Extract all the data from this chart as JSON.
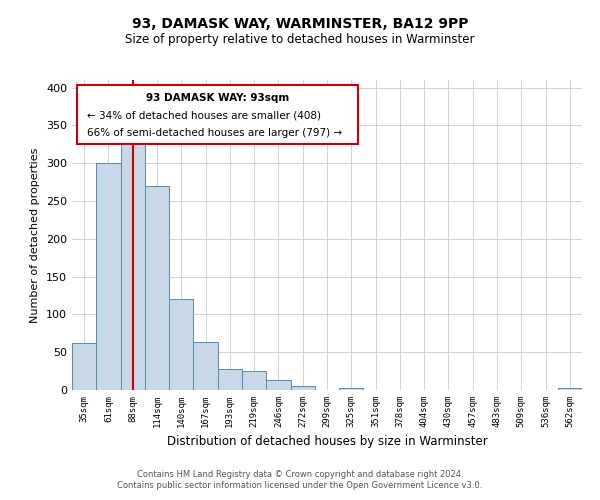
{
  "title": "93, DAMASK WAY, WARMINSTER, BA12 9PP",
  "subtitle": "Size of property relative to detached houses in Warminster",
  "xlabel": "Distribution of detached houses by size in Warminster",
  "ylabel": "Number of detached properties",
  "bin_labels": [
    "35sqm",
    "61sqm",
    "88sqm",
    "114sqm",
    "140sqm",
    "167sqm",
    "193sqm",
    "219sqm",
    "246sqm",
    "272sqm",
    "299sqm",
    "325sqm",
    "351sqm",
    "378sqm",
    "404sqm",
    "430sqm",
    "457sqm",
    "483sqm",
    "509sqm",
    "536sqm",
    "562sqm"
  ],
  "bar_values": [
    62,
    300,
    330,
    270,
    120,
    63,
    28,
    25,
    13,
    5,
    0,
    3,
    0,
    0,
    0,
    0,
    0,
    0,
    0,
    0,
    3
  ],
  "bar_color": "#c8d8e8",
  "bar_edge_color": "#5a8aaa",
  "vline_x_index": 2,
  "vline_color": "#cc0000",
  "annotation_title": "93 DAMASK WAY: 93sqm",
  "annotation_line1": "← 34% of detached houses are smaller (408)",
  "annotation_line2": "66% of semi-detached houses are larger (797) →",
  "annotation_box_color": "#ffffff",
  "annotation_box_edge_color": "#cc0000",
  "ylim": [
    0,
    410
  ],
  "yticks": [
    0,
    50,
    100,
    150,
    200,
    250,
    300,
    350,
    400
  ],
  "footer_line1": "Contains HM Land Registry data © Crown copyright and database right 2024.",
  "footer_line2": "Contains public sector information licensed under the Open Government Licence v3.0.",
  "background_color": "#ffffff",
  "grid_color": "#cccccc"
}
